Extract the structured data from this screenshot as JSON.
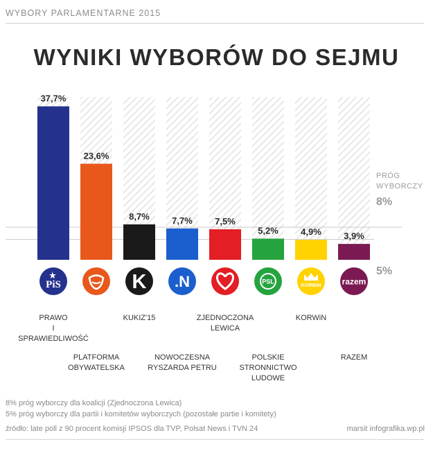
{
  "header": {
    "label": "WYBORY PARLAMENTARNE 2015"
  },
  "colors": {
    "hatch": "#e3e3e3",
    "threshold_line": "#c8c8c8",
    "text_dark": "#2b2b2b",
    "text_muted": "#9a9a9a"
  },
  "chart_data": {
    "type": "bar",
    "title": "WYNIKI WYBORÓW DO SEJMU",
    "categories": [
      "PRAWO I SPRAWIEDLIWOŚĆ",
      "PLATFORMA OBYWATELSKA",
      "KUKIZ'15",
      "NOWOCZESNA RYSZARDA PETRU",
      "ZJEDNOCZONA LEWICA",
      "POLSKIE STRONNICTWO LUDOWE",
      "KORWiN",
      "RAZEM"
    ],
    "category_lines": [
      [
        "PRAWO",
        "I",
        "SPRAWIEDLIWOŚĆ"
      ],
      [
        "PLATFORMA",
        "OBYWATELSKA"
      ],
      [
        "KUKIZ'15"
      ],
      [
        "NOWOCZESNA",
        "RYSZARDA PETRU"
      ],
      [
        "ZJEDNOCZONA",
        "LEWICA"
      ],
      [
        "POLSKIE",
        "STRONNICTWO",
        "LUDOWE"
      ],
      [
        "KORWiN"
      ],
      [
        "RAZEM"
      ]
    ],
    "values": [
      37.7,
      23.6,
      8.7,
      7.7,
      7.5,
      5.2,
      4.9,
      3.9
    ],
    "value_labels": [
      "37,7%",
      "23,6%",
      "8,7%",
      "7,7%",
      "7,5%",
      "5,2%",
      "4,9%",
      "3,9%"
    ],
    "bar_colors": [
      "#24318d",
      "#e8581b",
      "#1a1a1a",
      "#1b5fce",
      "#e31e24",
      "#24a33f",
      "#ffd200",
      "#7b1a52"
    ],
    "logos": [
      {
        "icon": "pis-logo-icon",
        "text": "PiS",
        "bg": "#24318d",
        "fg": "#ffffff"
      },
      {
        "icon": "po-logo-icon",
        "text": "",
        "bg": "#e8581b",
        "fg": "#ffffff"
      },
      {
        "icon": "kukiz-logo-icon",
        "text": "K",
        "bg": "#1a1a1a",
        "fg": "#ffffff"
      },
      {
        "icon": "nowoczesna-logo-icon",
        "text": ".N",
        "bg": "#1b5fce",
        "fg": "#ffffff"
      },
      {
        "icon": "zl-logo-icon",
        "text": "",
        "bg": "#e31e24",
        "fg": "#ffffff"
      },
      {
        "icon": "psl-logo-icon",
        "text": "PSL",
        "bg": "#24a33f",
        "fg": "#ffffff"
      },
      {
        "icon": "korwin-logo-icon",
        "text": "KORWiN",
        "bg": "#ffd200",
        "fg": "#ffffff"
      },
      {
        "icon": "razem-logo-icon",
        "text": "razem",
        "bg": "#7b1a52",
        "fg": "#ffffff"
      }
    ],
    "ylim": [
      0,
      40
    ],
    "thresholds": [
      {
        "value": 8,
        "label_lines": [
          "PRÓG",
          "WYBORCZY"
        ],
        "value_label": "8%"
      },
      {
        "value": 5,
        "label_lines": [],
        "value_label": "5%"
      }
    ],
    "grid": false,
    "legend": "none"
  },
  "notes": [
    "8% próg wyborczy dla koalicji (Zjednoczona Lewica)",
    "5% próg wyborczy dla partii i komitetów wyborczych (pozostałe partie i komitety)"
  ],
  "source": "źródło: late poll z 90 procent komisji IPSOS dla TVP, Polsat News i TVN 24",
  "credit": "marsit infografika.wp.pl"
}
